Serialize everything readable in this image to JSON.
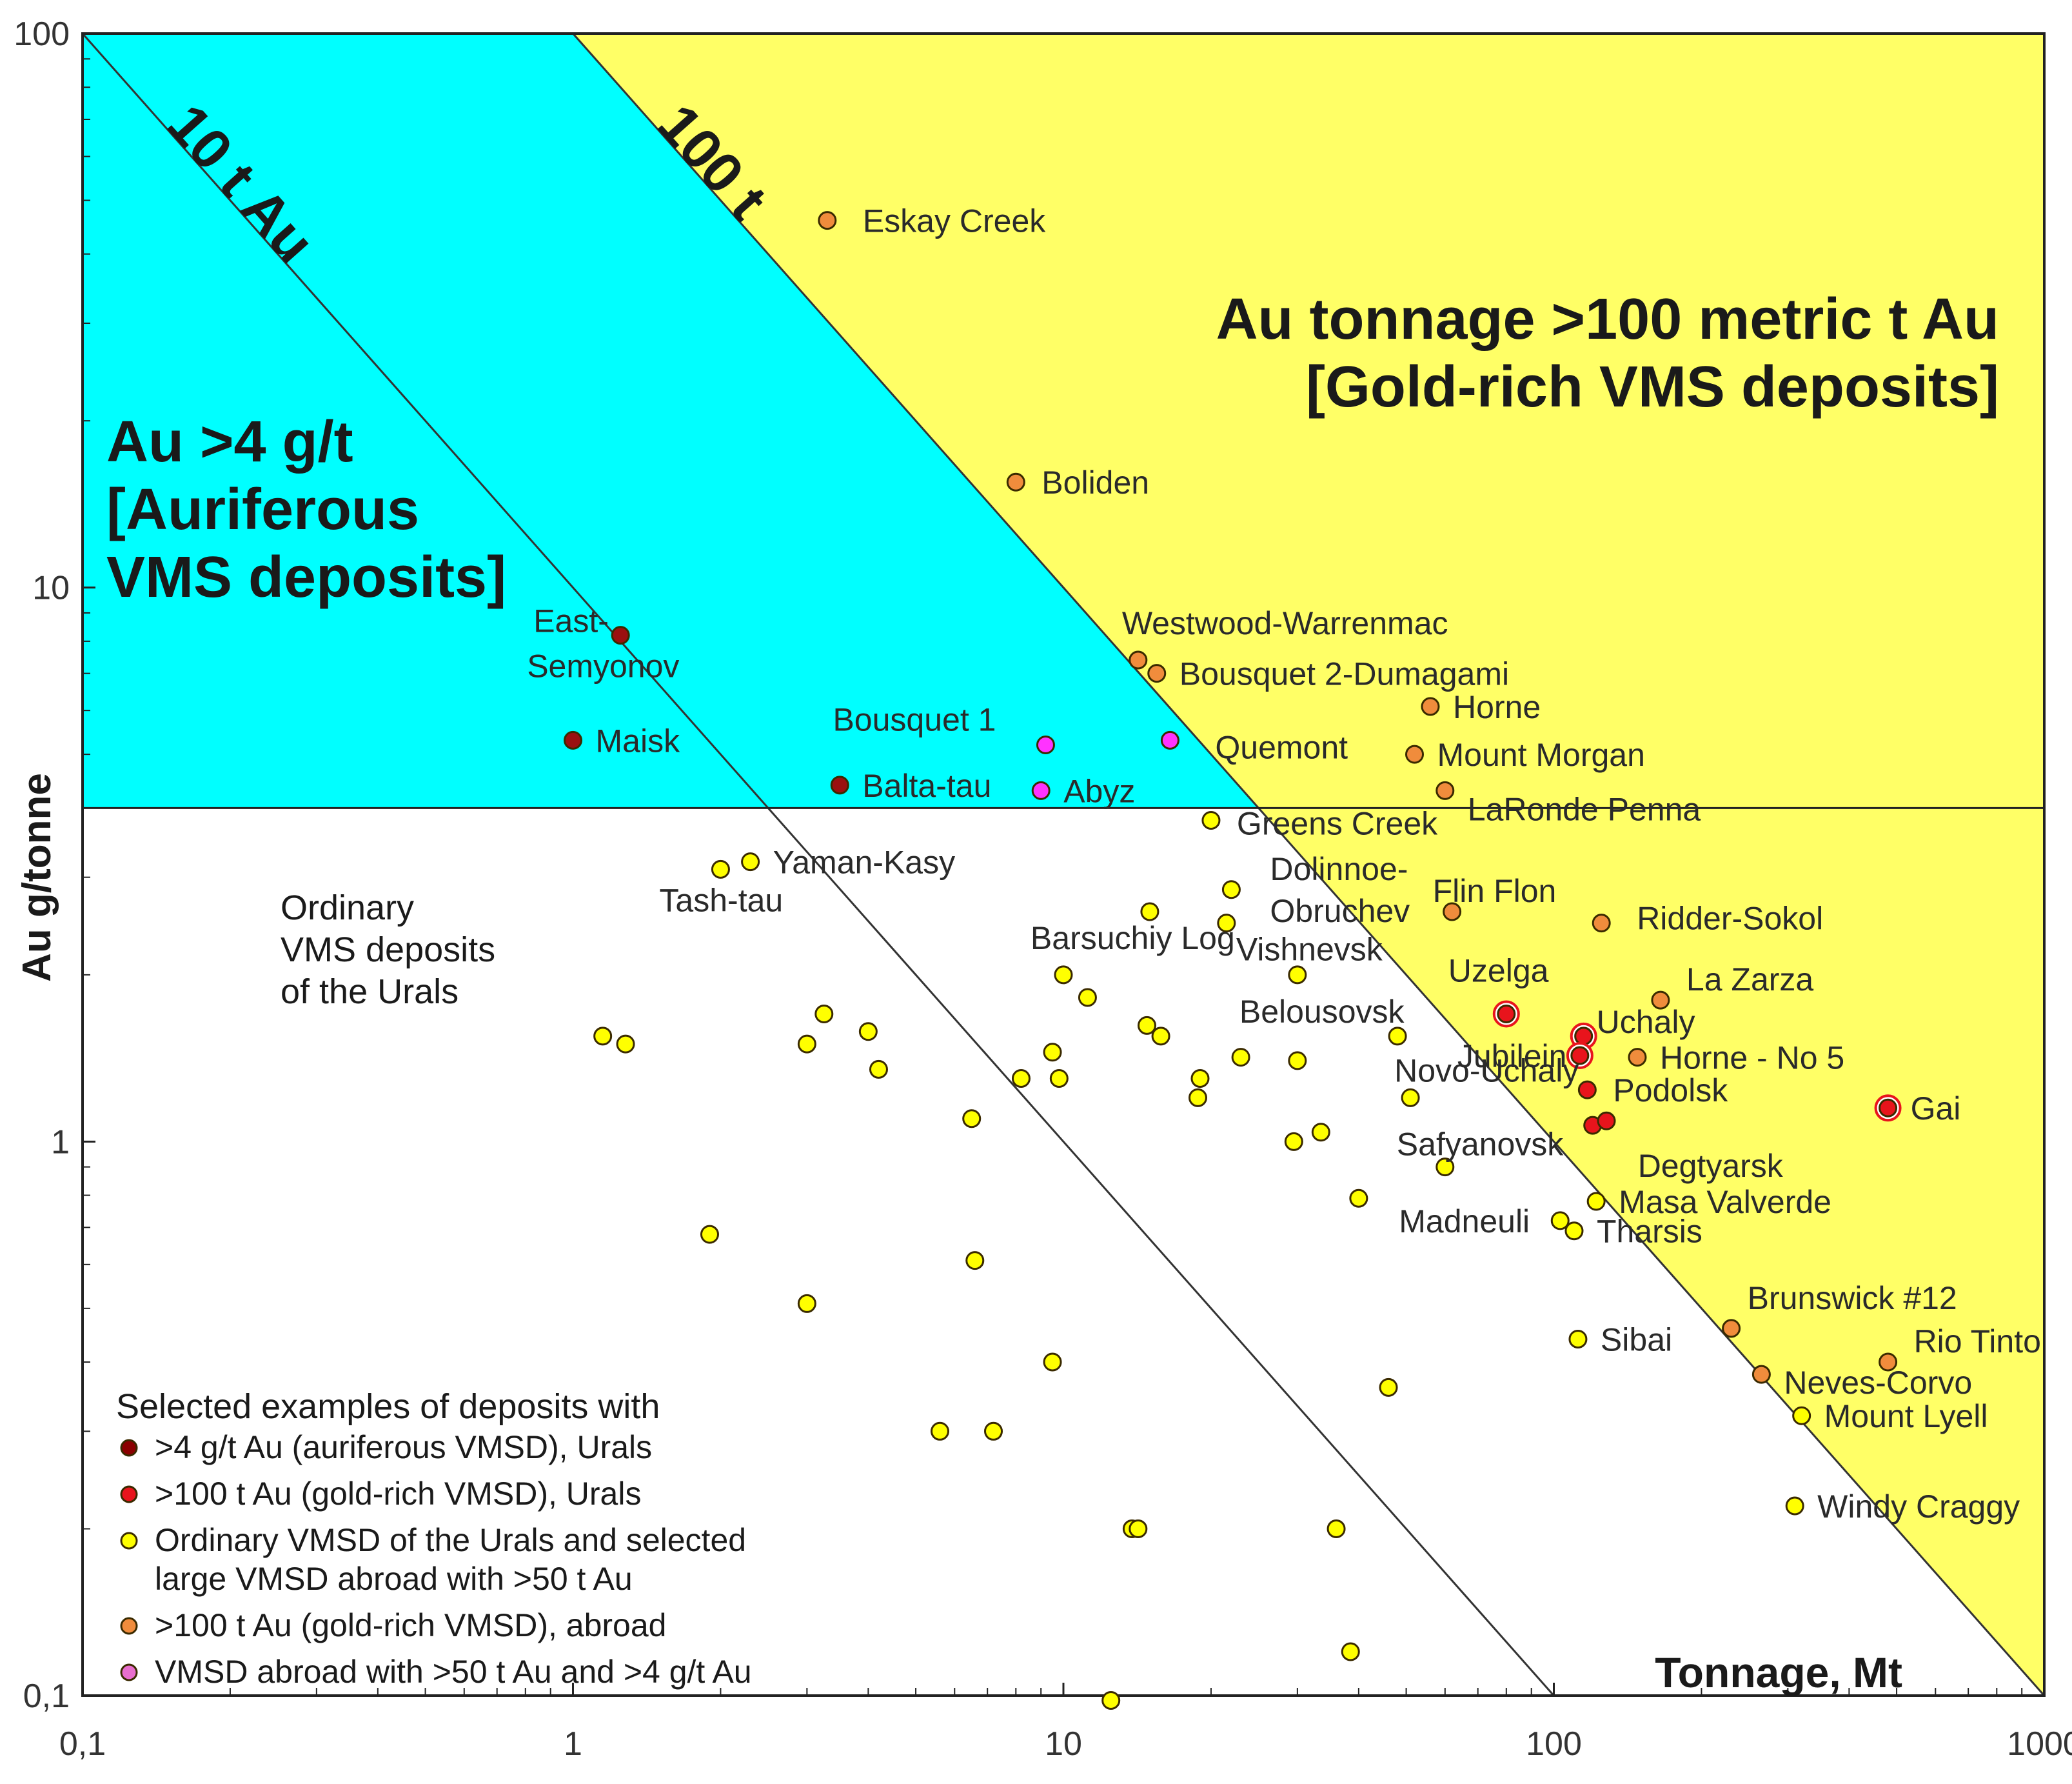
{
  "chart_data": {
    "type": "scatter",
    "xlabel": "Tonnage, Mt",
    "ylabel": "Au g/tonne",
    "x_scale": "log",
    "y_scale": "log",
    "xlim": [
      0.1,
      1000
    ],
    "ylim": [
      0.1,
      100
    ],
    "x_ticks": [
      "0,1",
      "1",
      "10",
      "100",
      "1000"
    ],
    "y_ticks": [
      "0,1",
      "1",
      "10",
      "100"
    ],
    "regions": {
      "auriferous": {
        "title_lines": [
          "Au >4 g/t",
          "[Auriferous",
          "VMS deposits]"
        ],
        "color": "#00ffff"
      },
      "gold_rich": {
        "title_lines": [
          "Au tonnage >100 metric t Au",
          "[Gold-rich VMS deposits]"
        ],
        "color": "#ffff66"
      },
      "ordinary": {
        "title_lines": [
          "Ordinary",
          "VMS deposits",
          "of the Urals"
        ]
      }
    },
    "reference_lines": [
      {
        "label": "10 t Au",
        "gold_tonnes": 10
      },
      {
        "label": "100 t",
        "gold_tonnes": 100
      },
      {
        "label": "",
        "au_grade": 4
      }
    ],
    "legend": {
      "title": "Selected examples of deposits with",
      "items": [
        {
          "lines": [
            ">4 g/t Au (auriferous VMSD), Urals"
          ],
          "color": "#8b0000"
        },
        {
          "lines": [
            ">100 t Au (gold-rich VMSD), Urals"
          ],
          "color": "#e8141c"
        },
        {
          "lines": [
            "Ordinary VMSD of the Urals and selected",
            "large VMSD abroad with >50 t Au"
          ],
          "color": "#ffff00"
        },
        {
          "lines": [
            ">100 t Au (gold-rich VMSD), abroad"
          ],
          "color": "#f08c3c"
        },
        {
          "lines": [
            "VMSD abroad with >50 t Au and >4 g/t Au"
          ],
          "color": "#e86ecd"
        }
      ],
      "placement": "bottom-left"
    },
    "categories": {
      "uralsAuriferous": {
        "color": "#9b1010"
      },
      "uralsGoldRich": {
        "color": "#e8141c"
      },
      "ordinary": {
        "color": "#ffff00"
      },
      "abroadGoldRich": {
        "color": "#f08c3c"
      },
      "abroadAuriferous": {
        "color": "#ff33ff"
      }
    },
    "points": [
      {
        "x": 3.3,
        "y": 46,
        "cat": "abroadGoldRich",
        "label": "Eskay Creek"
      },
      {
        "x": 8.0,
        "y": 15.5,
        "cat": "abroadGoldRich",
        "label": "Boliden"
      },
      {
        "x": 14.2,
        "y": 7.4,
        "cat": "abroadGoldRich",
        "label": "Westwood-Warrenmac"
      },
      {
        "x": 15.5,
        "y": 7.0,
        "cat": "abroadGoldRich",
        "label": "Bousquet 2-Dumagami"
      },
      {
        "x": 56,
        "y": 6.1,
        "cat": "abroadGoldRich",
        "label": "Horne"
      },
      {
        "x": 52,
        "y": 5.0,
        "cat": "abroadGoldRich",
        "label": "Mount Morgan"
      },
      {
        "x": 60,
        "y": 4.3,
        "cat": "abroadGoldRich",
        "label": "LaRonde Penna"
      },
      {
        "x": 1.25,
        "y": 8.2,
        "cat": "uralsAuriferous",
        "label": "East-Semyonov"
      },
      {
        "x": 1.0,
        "y": 5.3,
        "cat": "uralsAuriferous",
        "label": "Maisk"
      },
      {
        "x": 3.5,
        "y": 4.4,
        "cat": "uralsAuriferous",
        "label": "Balta-tau"
      },
      {
        "x": 9.2,
        "y": 5.2,
        "cat": "abroadAuriferous",
        "label": "Bousquet 1"
      },
      {
        "x": 16.5,
        "y": 5.3,
        "cat": "abroadAuriferous",
        "label": "Quemont"
      },
      {
        "x": 9.0,
        "y": 4.3,
        "cat": "abroadAuriferous",
        "label": "Abyz"
      },
      {
        "x": 20,
        "y": 3.8,
        "cat": "ordinary",
        "label": "Greens Creek"
      },
      {
        "x": 2.3,
        "y": 3.2,
        "cat": "ordinary",
        "label": "Yaman-Kasy"
      },
      {
        "x": 2.0,
        "y": 3.1,
        "cat": "ordinary",
        "label": "Tash-tau"
      },
      {
        "x": 22,
        "y": 2.85,
        "cat": "ordinary",
        "label": "Dolinnoe-Obruchev"
      },
      {
        "x": 62,
        "y": 2.6,
        "cat": "abroadGoldRich",
        "label": "Flin Flon"
      },
      {
        "x": 15,
        "y": 2.6,
        "cat": "ordinary",
        "label": "Barsuchiy Log"
      },
      {
        "x": 21.5,
        "y": 2.48,
        "cat": "ordinary",
        "label": "Vishnevsk"
      },
      {
        "x": 125,
        "y": 2.48,
        "cat": "abroadGoldRich",
        "label": "Ridder-Sokol"
      },
      {
        "x": 30,
        "y": 2.0,
        "cat": "ordinary",
        "label": "Belousovsk"
      },
      {
        "x": 165,
        "y": 1.8,
        "cat": "abroadGoldRich",
        "label": "La Zarza"
      },
      {
        "x": 80,
        "y": 1.7,
        "cat": "uralsGoldRich",
        "label": "Uzelga"
      },
      {
        "x": 115,
        "y": 1.55,
        "cat": "uralsGoldRich",
        "label": "Uchaly"
      },
      {
        "x": 113,
        "y": 1.43,
        "cat": "uralsGoldRich",
        "label": "Jubilein"
      },
      {
        "x": 148,
        "y": 1.42,
        "cat": "abroadGoldRich",
        "label": "Horne - No 5"
      },
      {
        "x": 48,
        "y": 1.55,
        "cat": "ordinary",
        "label": ""
      },
      {
        "x": 51,
        "y": 1.2,
        "cat": "ordinary",
        "label": "Novo-Uchaly"
      },
      {
        "x": 117,
        "y": 1.24,
        "cat": "uralsGoldRich",
        "label": "Podolsk"
      },
      {
        "x": 480,
        "y": 1.15,
        "cat": "uralsGoldRich",
        "label": "Gai"
      },
      {
        "x": 120,
        "y": 1.07,
        "cat": "uralsGoldRich",
        "label": "Degtyarsk"
      },
      {
        "x": 128,
        "y": 1.09,
        "cat": "uralsGoldRich",
        "label": ""
      },
      {
        "x": 60,
        "y": 0.9,
        "cat": "ordinary",
        "label": "Safyanovsk"
      },
      {
        "x": 122,
        "y": 0.78,
        "cat": "ordinary",
        "label": "Masa Valverde"
      },
      {
        "x": 103,
        "y": 0.72,
        "cat": "ordinary",
        "label": "Madneuli"
      },
      {
        "x": 110,
        "y": 0.69,
        "cat": "ordinary",
        "label": "Tharsis"
      },
      {
        "x": 230,
        "y": 0.46,
        "cat": "abroadGoldRich",
        "label": "Brunswick #12"
      },
      {
        "x": 112,
        "y": 0.44,
        "cat": "ordinary",
        "label": "Sibai"
      },
      {
        "x": 480,
        "y": 0.4,
        "cat": "abroadGoldRich",
        "label": "Rio Tinto"
      },
      {
        "x": 265,
        "y": 0.38,
        "cat": "abroadGoldRich",
        "label": "Neves-Corvo"
      },
      {
        "x": 320,
        "y": 0.32,
        "cat": "ordinary",
        "label": "Mount Lyell"
      },
      {
        "x": 310,
        "y": 0.22,
        "cat": "ordinary",
        "label": "Windy Craggy"
      },
      {
        "x": 1.15,
        "y": 1.55,
        "cat": "ordinary",
        "label": ""
      },
      {
        "x": 1.28,
        "y": 1.5,
        "cat": "ordinary",
        "label": ""
      },
      {
        "x": 3.0,
        "y": 1.5,
        "cat": "ordinary",
        "label": ""
      },
      {
        "x": 3.25,
        "y": 1.7,
        "cat": "ordinary",
        "label": ""
      },
      {
        "x": 4.0,
        "y": 1.58,
        "cat": "ordinary",
        "label": ""
      },
      {
        "x": 4.2,
        "y": 1.35,
        "cat": "ordinary",
        "label": ""
      },
      {
        "x": 6.5,
        "y": 1.1,
        "cat": "ordinary",
        "label": ""
      },
      {
        "x": 8.2,
        "y": 1.3,
        "cat": "ordinary",
        "label": ""
      },
      {
        "x": 9.5,
        "y": 1.45,
        "cat": "ordinary",
        "label": ""
      },
      {
        "x": 9.8,
        "y": 1.3,
        "cat": "ordinary",
        "label": ""
      },
      {
        "x": 10,
        "y": 2.0,
        "cat": "ordinary",
        "label": ""
      },
      {
        "x": 11.2,
        "y": 1.82,
        "cat": "ordinary",
        "label": ""
      },
      {
        "x": 14.8,
        "y": 1.62,
        "cat": "ordinary",
        "label": ""
      },
      {
        "x": 15.8,
        "y": 1.55,
        "cat": "ordinary",
        "label": ""
      },
      {
        "x": 19,
        "y": 1.3,
        "cat": "ordinary",
        "label": ""
      },
      {
        "x": 18.8,
        "y": 1.2,
        "cat": "ordinary",
        "label": ""
      },
      {
        "x": 23,
        "y": 1.42,
        "cat": "ordinary",
        "label": ""
      },
      {
        "x": 30,
        "y": 1.4,
        "cat": "ordinary",
        "label": ""
      },
      {
        "x": 29.5,
        "y": 1.0,
        "cat": "ordinary",
        "label": ""
      },
      {
        "x": 33.5,
        "y": 1.04,
        "cat": "ordinary",
        "label": ""
      },
      {
        "x": 40,
        "y": 0.79,
        "cat": "ordinary",
        "label": ""
      },
      {
        "x": 1.9,
        "y": 0.68,
        "cat": "ordinary",
        "label": ""
      },
      {
        "x": 6.6,
        "y": 0.61,
        "cat": "ordinary",
        "label": ""
      },
      {
        "x": 3.0,
        "y": 0.51,
        "cat": "ordinary",
        "label": ""
      },
      {
        "x": 9.5,
        "y": 0.4,
        "cat": "ordinary",
        "label": ""
      },
      {
        "x": 5.6,
        "y": 0.3,
        "cat": "ordinary",
        "label": ""
      },
      {
        "x": 7.2,
        "y": 0.3,
        "cat": "ordinary",
        "label": ""
      },
      {
        "x": 46,
        "y": 0.36,
        "cat": "ordinary",
        "label": ""
      },
      {
        "x": 13.8,
        "y": 0.2,
        "cat": "ordinary",
        "label": ""
      },
      {
        "x": 14.2,
        "y": 0.2,
        "cat": "ordinary",
        "label": ""
      },
      {
        "x": 36,
        "y": 0.2,
        "cat": "ordinary",
        "label": ""
      },
      {
        "x": 38.5,
        "y": 0.12,
        "cat": "ordinary",
        "label": ""
      },
      {
        "x": 12.5,
        "y": 0.098,
        "cat": "ordinary",
        "label": ""
      }
    ]
  }
}
